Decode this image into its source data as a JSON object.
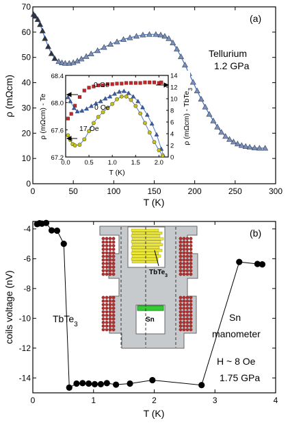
{
  "chart_data": [
    {
      "type": "scatter",
      "panel_label": "(a)",
      "xlabel": "T (K)",
      "ylabel": "ρ (mΩcm)",
      "xlim": [
        0,
        300
      ],
      "ylim": [
        0,
        70
      ],
      "xticks": [
        "0",
        "50",
        "100",
        "150",
        "200",
        "250",
        "300"
      ],
      "yticks": [
        "0",
        "10",
        "20",
        "30",
        "40",
        "50",
        "60",
        "70"
      ],
      "annotation": [
        "Tellurium",
        "1.2 GPa"
      ],
      "colors": {
        "markers": "#7e8fb0",
        "fit": "#3a6fc4",
        "lowT": "#333333"
      },
      "series": [
        {
          "values": [
            [
              1,
              67
            ],
            [
              3,
              66.3
            ],
            [
              6,
              65
            ],
            [
              9,
              63
            ],
            [
              12,
              60.5
            ],
            [
              15,
              57.5
            ],
            [
              19,
              54.3
            ],
            [
              23,
              51.5
            ],
            [
              27,
              49.6
            ],
            [
              32,
              48.4
            ],
            [
              36,
              47.9
            ],
            [
              40,
              47.7
            ],
            [
              45,
              47.7
            ],
            [
              50,
              48
            ],
            [
              55,
              48.6
            ],
            [
              60,
              49.4
            ],
            [
              66,
              50.4
            ],
            [
              72,
              51.4
            ],
            [
              80,
              52.7
            ],
            [
              88,
              54
            ],
            [
              96,
              55.2
            ],
            [
              104,
              56.2
            ],
            [
              112,
              57.1
            ],
            [
              120,
              57.8
            ],
            [
              128,
              58.4
            ],
            [
              136,
              58.9
            ],
            [
              144,
              59.1
            ],
            [
              152,
              59.1
            ],
            [
              158,
              58.9
            ],
            [
              163,
              58.4
            ],
            [
              168,
              57.5
            ],
            [
              173,
              55.8
            ],
            [
              178,
              53.3
            ],
            [
              183,
              50.3
            ],
            [
              188,
              47
            ],
            [
              193,
              43.6
            ],
            [
              198,
              40.2
            ],
            [
              203,
              36.8
            ],
            [
              208,
              33.5
            ],
            [
              213,
              30.4
            ],
            [
              218,
              27.5
            ],
            [
              223,
              24.9
            ],
            [
              228,
              22.5
            ],
            [
              233,
              20.4
            ],
            [
              238,
              18.8
            ],
            [
              243,
              17.6
            ],
            [
              248,
              16.6
            ],
            [
              253,
              15.8
            ],
            [
              258,
              15.2
            ],
            [
              263,
              14.8
            ],
            [
              268,
              14.5
            ],
            [
              274,
              14.2
            ],
            [
              280,
              14.1
            ],
            [
              287,
              14.1
            ]
          ]
        }
      ],
      "inset": {
        "xlabel": "T (K)",
        "ylabel_left": "ρ (mΩcm) - Te",
        "ylabel_right": "ρ (mΩcm) - TbTe3",
        "xlim": [
          0,
          2.2
        ],
        "ylim_left": [
          67.2,
          68.4
        ],
        "ylim_right": [
          0,
          14
        ],
        "xticks": [
          "0.0",
          "0.5",
          "1.0",
          "1.5",
          "2.0"
        ],
        "yticks_left": [
          "67.2",
          "67.6",
          "68.0",
          "68.4"
        ],
        "yticks_right": [
          "0",
          "2",
          "4",
          "6",
          "8",
          "10",
          "12",
          "14"
        ],
        "series": [
          {
            "name": "0 Oe",
            "axis": "right",
            "marker": "square",
            "color": "#c0282a",
            "values": [
              [
                0.05,
                6.6
              ],
              [
                0.12,
                7.4
              ],
              [
                0.2,
                8.8
              ],
              [
                0.3,
                10.3
              ],
              [
                0.4,
                11.4
              ],
              [
                0.5,
                11.9
              ],
              [
                0.6,
                12.1
              ],
              [
                0.7,
                12.3
              ],
              [
                0.8,
                12.3
              ],
              [
                0.9,
                12.5
              ],
              [
                1.0,
                12.5
              ],
              [
                1.1,
                12.6
              ],
              [
                1.2,
                12.6
              ],
              [
                1.3,
                12.7
              ],
              [
                1.4,
                12.7
              ],
              [
                1.5,
                12.7
              ],
              [
                1.6,
                12.7
              ],
              [
                1.7,
                12.8
              ],
              [
                1.8,
                12.8
              ],
              [
                1.9,
                12.8
              ],
              [
                2.0,
                12.7
              ],
              [
                2.05,
                12.8
              ]
            ]
          },
          {
            "name": "0 Oe",
            "axis": "left",
            "marker": "triangle",
            "color": "#3d5fa3",
            "values": [
              [
                0.05,
                68.08
              ],
              [
                0.1,
                68.02
              ],
              [
                0.18,
                67.92
              ],
              [
                0.25,
                67.87
              ],
              [
                0.35,
                67.88
              ],
              [
                0.45,
                67.91
              ],
              [
                0.55,
                67.95
              ],
              [
                0.65,
                67.99
              ],
              [
                0.75,
                68.02
              ],
              [
                0.85,
                68.06
              ],
              [
                0.95,
                68.09
              ],
              [
                1.05,
                68.13
              ],
              [
                1.15,
                68.16
              ],
              [
                1.25,
                68.17
              ],
              [
                1.35,
                68.14
              ],
              [
                1.45,
                68.09
              ],
              [
                1.55,
                68.02
              ],
              [
                1.65,
                67.93
              ],
              [
                1.75,
                67.82
              ],
              [
                1.85,
                67.69
              ],
              [
                1.95,
                67.53
              ],
              [
                2.05,
                67.32
              ],
              [
                2.1,
                67.22
              ]
            ]
          },
          {
            "name": "17 Oe",
            "axis": "left",
            "marker": "circle",
            "color": "#c8c020",
            "values": [
              [
                0.05,
                67.52
              ],
              [
                0.1,
                67.45
              ],
              [
                0.15,
                67.39
              ],
              [
                0.2,
                67.37
              ],
              [
                0.3,
                67.38
              ],
              [
                0.4,
                67.46
              ],
              [
                0.5,
                67.58
              ],
              [
                0.6,
                67.7
              ],
              [
                0.7,
                67.79
              ],
              [
                0.8,
                67.86
              ],
              [
                0.9,
                67.92
              ],
              [
                1.0,
                67.98
              ],
              [
                1.1,
                68.05
              ],
              [
                1.2,
                68.09
              ],
              [
                1.3,
                68.09
              ],
              [
                1.4,
                68.04
              ],
              [
                1.5,
                67.95
              ],
              [
                1.6,
                67.84
              ],
              [
                1.7,
                67.7
              ],
              [
                1.8,
                67.56
              ],
              [
                1.9,
                67.42
              ],
              [
                2.0,
                67.3
              ],
              [
                2.08,
                67.22
              ]
            ]
          }
        ]
      }
    },
    {
      "type": "line",
      "panel_label": "(b)",
      "xlabel": "T (K)",
      "ylabel": "coils voltage (nV)",
      "xlim": [
        0,
        4
      ],
      "ylim": [
        -15,
        -3.5
      ],
      "xticks": [
        "0",
        "1",
        "2",
        "3",
        "4"
      ],
      "yticks": [
        "-4",
        "-6",
        "-8",
        "-10",
        "-12",
        "-14"
      ],
      "annotations": {
        "tbte3": "TbTe3",
        "sn": [
          "Sn",
          "manometer"
        ],
        "conditions": [
          "H ~ 8 Oe",
          "1.75 GPa"
        ]
      },
      "series": [
        {
          "values": [
            [
              0.07,
              -3.68
            ],
            [
              0.11,
              -3.62
            ],
            [
              0.15,
              -3.65
            ],
            [
              0.22,
              -3.6
            ],
            [
              0.31,
              -4.1
            ],
            [
              0.4,
              -4.12
            ],
            [
              0.51,
              -5.0
            ],
            [
              0.6,
              -14.65
            ],
            [
              0.72,
              -14.38
            ],
            [
              0.82,
              -14.35
            ],
            [
              0.92,
              -14.38
            ],
            [
              1.02,
              -14.42
            ],
            [
              1.12,
              -14.42
            ],
            [
              1.22,
              -14.35
            ],
            [
              1.37,
              -14.45
            ],
            [
              1.6,
              -14.38
            ],
            [
              1.97,
              -14.15
            ],
            [
              2.78,
              -14.48
            ],
            [
              3.4,
              -6.22
            ],
            [
              3.7,
              -6.35
            ],
            [
              3.78,
              -6.38
            ]
          ]
        }
      ],
      "schematic": {
        "label_tbte3": "TbTe3",
        "label_sn": "Sn"
      }
    }
  ]
}
